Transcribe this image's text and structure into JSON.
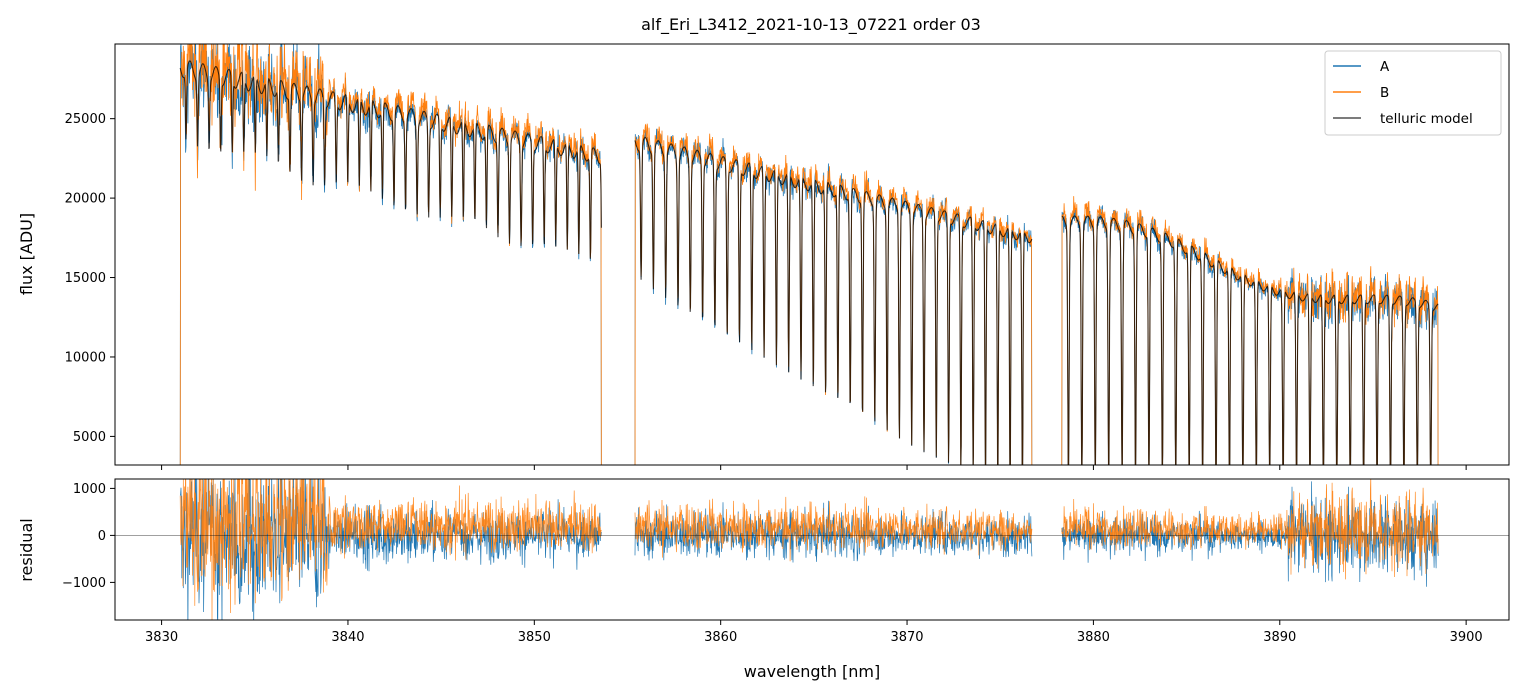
{
  "colors": {
    "series_a": "#1f77b4",
    "series_b": "#ff7f0e",
    "model": "#505050",
    "zero_line": "#000000"
  },
  "chart_data": [
    {
      "type": "line",
      "title": "alf_Eri_L3412_2021-10-13_07221  order 03",
      "ylabel": "flux [ADU]",
      "xlim": [
        3827.5,
        3902.3
      ],
      "ylim": [
        3200,
        29700
      ],
      "yticks": [
        5000,
        10000,
        15000,
        20000,
        25000
      ],
      "xticks": [
        3830,
        3840,
        3850,
        3860,
        3870,
        3880,
        3890,
        3900
      ],
      "segments": [
        {
          "start": 3831.0,
          "end": 3853.6,
          "continuum_start": 28200,
          "continuum_end": 22600
        },
        {
          "start": 3855.4,
          "end": 3876.7,
          "continuum_start": 23500,
          "continuum_end": 17500
        },
        {
          "start": 3878.3,
          "end": 3898.5,
          "continuum_start": 18500,
          "continuum_end": 12300
        }
      ],
      "series": [
        {
          "name": "A"
        },
        {
          "name": "B"
        },
        {
          "name": "telluric model"
        }
      ],
      "legend": {
        "placement": "top-right",
        "entries": [
          "A",
          "B",
          "telluric model"
        ]
      },
      "grid": false
    },
    {
      "type": "line",
      "xlabel": "wavelength [nm]",
      "ylabel": "residual",
      "xlim": [
        3827.5,
        3902.3
      ],
      "ylim": [
        -1800,
        1200
      ],
      "yticks": [
        -1000,
        0,
        1000
      ],
      "xticks": [
        3830,
        3840,
        3850,
        3860,
        3870,
        3880,
        3890,
        3900
      ],
      "xtick_labels": [
        "3830",
        "3840",
        "3850",
        "3860",
        "3870",
        "3880",
        "3890",
        "3900"
      ],
      "zero_line": 0,
      "grid": false
    }
  ]
}
